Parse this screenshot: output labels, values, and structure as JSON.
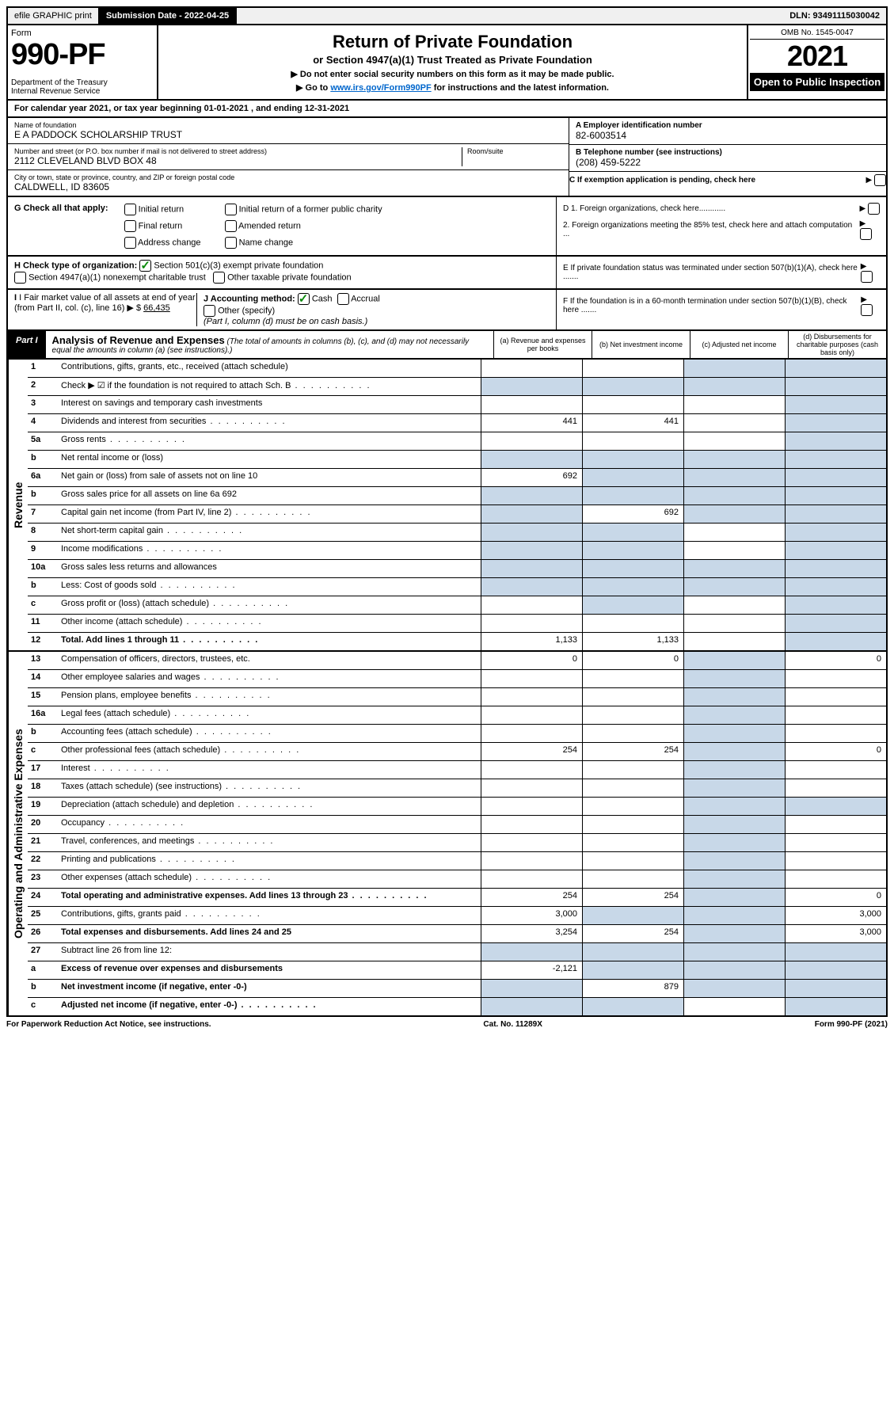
{
  "top": {
    "efile": "efile GRAPHIC print",
    "sub_label": "Submission Date - 2022-04-25",
    "dln": "DLN: 93491115030042"
  },
  "header": {
    "form": "Form",
    "form_num": "990-PF",
    "dept": "Department of the Treasury\nInternal Revenue Service",
    "title": "Return of Private Foundation",
    "subtitle": "or Section 4947(a)(1) Trust Treated as Private Foundation",
    "note1": "▶ Do not enter social security numbers on this form as it may be made public.",
    "note2_pre": "▶ Go to ",
    "note2_link": "www.irs.gov/Form990PF",
    "note2_post": " for instructions and the latest information.",
    "omb": "OMB No. 1545-0047",
    "year": "2021",
    "open": "Open to Public Inspection"
  },
  "cal": "For calendar year 2021, or tax year beginning 01-01-2021            , and ending 12-31-2021",
  "info": {
    "name_lbl": "Name of foundation",
    "name": "E A PADDOCK SCHOLARSHIP TRUST",
    "addr_lbl": "Number and street (or P.O. box number if mail is not delivered to street address)",
    "addr": "2112 CLEVELAND BLVD BOX 48",
    "room_lbl": "Room/suite",
    "city_lbl": "City or town, state or province, country, and ZIP or foreign postal code",
    "city": "CALDWELL, ID  83605",
    "ein_lbl": "A Employer identification number",
    "ein": "82-6003514",
    "tel_lbl": "B Telephone number (see instructions)",
    "tel": "(208) 459-5222",
    "c_lbl": "C If exemption application is pending, check here"
  },
  "g": {
    "label": "G Check all that apply:",
    "opts": [
      "Initial return",
      "Final return",
      "Address change",
      "Initial return of a former public charity",
      "Amended return",
      "Name change"
    ]
  },
  "d": {
    "d1": "D 1. Foreign organizations, check here............",
    "d2": "2. Foreign organizations meeting the 85% test, check here and attach computation ...",
    "e": "E  If private foundation status was terminated under section 507(b)(1)(A), check here .......",
    "f": "F  If the foundation is in a 60-month termination under section 507(b)(1)(B), check here ......."
  },
  "h": {
    "label": "H Check type of organization:",
    "opt1": "Section 501(c)(3) exempt private foundation",
    "opt2": "Section 4947(a)(1) nonexempt charitable trust",
    "opt3": "Other taxable private foundation"
  },
  "i": {
    "label": "I Fair market value of all assets at end of year (from Part II, col. (c), line 16)",
    "val": "66,435"
  },
  "j": {
    "label": "J Accounting method:",
    "cash": "Cash",
    "accrual": "Accrual",
    "other": "Other (specify)",
    "note": "(Part I, column (d) must be on cash basis.)"
  },
  "part1": {
    "label": "Part I",
    "title": "Analysis of Revenue and Expenses",
    "note": "(The total of amounts in columns (b), (c), and (d) may not necessarily equal the amounts in column (a) (see instructions).)",
    "cols": {
      "a": "(a)   Revenue and expenses per books",
      "b": "(b)   Net investment income",
      "c": "(c)   Adjusted net income",
      "d": "(d)   Disbursements for charitable purposes (cash basis only)"
    }
  },
  "side": {
    "rev": "Revenue",
    "exp": "Operating and Administrative Expenses"
  },
  "rows": [
    {
      "n": "1",
      "d": "Contributions, gifts, grants, etc., received (attach schedule)",
      "s": [
        false,
        false,
        true,
        true
      ]
    },
    {
      "n": "2",
      "d": "Check ▶ ☑ if the foundation is not required to attach Sch. B",
      "dots": true,
      "s": [
        true,
        true,
        true,
        true
      ]
    },
    {
      "n": "3",
      "d": "Interest on savings and temporary cash investments",
      "s": [
        false,
        false,
        false,
        true
      ]
    },
    {
      "n": "4",
      "d": "Dividends and interest from securities",
      "dots": true,
      "a": "441",
      "b": "441",
      "s": [
        false,
        false,
        false,
        true
      ]
    },
    {
      "n": "5a",
      "d": "Gross rents",
      "dots": true,
      "s": [
        false,
        false,
        false,
        true
      ]
    },
    {
      "n": "b",
      "d": "Net rental income or (loss)",
      "s": [
        true,
        true,
        true,
        true
      ]
    },
    {
      "n": "6a",
      "d": "Net gain or (loss) from sale of assets not on line 10",
      "a": "692",
      "s": [
        false,
        true,
        true,
        true
      ]
    },
    {
      "n": "b",
      "d": "Gross sales price for all assets on line 6a           692",
      "s": [
        true,
        true,
        true,
        true
      ]
    },
    {
      "n": "7",
      "d": "Capital gain net income (from Part IV, line 2)",
      "dots": true,
      "b": "692",
      "s": [
        true,
        false,
        true,
        true
      ]
    },
    {
      "n": "8",
      "d": "Net short-term capital gain",
      "dots": true,
      "s": [
        true,
        true,
        false,
        true
      ]
    },
    {
      "n": "9",
      "d": "Income modifications",
      "dots": true,
      "s": [
        true,
        true,
        false,
        true
      ]
    },
    {
      "n": "10a",
      "d": "Gross sales less returns and allowances",
      "s": [
        true,
        true,
        true,
        true
      ]
    },
    {
      "n": "b",
      "d": "Less: Cost of goods sold",
      "dots": true,
      "s": [
        true,
        true,
        true,
        true
      ]
    },
    {
      "n": "c",
      "d": "Gross profit or (loss) (attach schedule)",
      "dots": true,
      "s": [
        false,
        true,
        false,
        true
      ]
    },
    {
      "n": "11",
      "d": "Other income (attach schedule)",
      "dots": true,
      "s": [
        false,
        false,
        false,
        true
      ]
    },
    {
      "n": "12",
      "d": "Total. Add lines 1 through 11",
      "dots": true,
      "bold": true,
      "a": "1,133",
      "b": "1,133",
      "s": [
        false,
        false,
        false,
        true
      ]
    }
  ],
  "exp_rows": [
    {
      "n": "13",
      "d": "Compensation of officers, directors, trustees, etc.",
      "a": "0",
      "b": "0",
      "dd": "0",
      "s": [
        false,
        false,
        true,
        false
      ]
    },
    {
      "n": "14",
      "d": "Other employee salaries and wages",
      "dots": true,
      "s": [
        false,
        false,
        true,
        false
      ]
    },
    {
      "n": "15",
      "d": "Pension plans, employee benefits",
      "dots": true,
      "s": [
        false,
        false,
        true,
        false
      ]
    },
    {
      "n": "16a",
      "d": "Legal fees (attach schedule)",
      "dots": true,
      "s": [
        false,
        false,
        true,
        false
      ]
    },
    {
      "n": "b",
      "d": "Accounting fees (attach schedule)",
      "dots": true,
      "s": [
        false,
        false,
        true,
        false
      ]
    },
    {
      "n": "c",
      "d": "Other professional fees (attach schedule)",
      "dots": true,
      "a": "254",
      "b": "254",
      "dd": "0",
      "s": [
        false,
        false,
        true,
        false
      ]
    },
    {
      "n": "17",
      "d": "Interest",
      "dots": true,
      "s": [
        false,
        false,
        true,
        false
      ]
    },
    {
      "n": "18",
      "d": "Taxes (attach schedule) (see instructions)",
      "dots": true,
      "s": [
        false,
        false,
        true,
        false
      ]
    },
    {
      "n": "19",
      "d": "Depreciation (attach schedule) and depletion",
      "dots": true,
      "s": [
        false,
        false,
        true,
        true
      ]
    },
    {
      "n": "20",
      "d": "Occupancy",
      "dots": true,
      "s": [
        false,
        false,
        true,
        false
      ]
    },
    {
      "n": "21",
      "d": "Travel, conferences, and meetings",
      "dots": true,
      "s": [
        false,
        false,
        true,
        false
      ]
    },
    {
      "n": "22",
      "d": "Printing and publications",
      "dots": true,
      "s": [
        false,
        false,
        true,
        false
      ]
    },
    {
      "n": "23",
      "d": "Other expenses (attach schedule)",
      "dots": true,
      "s": [
        false,
        false,
        true,
        false
      ]
    },
    {
      "n": "24",
      "d": "Total operating and administrative expenses. Add lines 13 through 23",
      "dots": true,
      "bold": true,
      "a": "254",
      "b": "254",
      "dd": "0",
      "s": [
        false,
        false,
        true,
        false
      ]
    },
    {
      "n": "25",
      "d": "Contributions, gifts, grants paid",
      "dots": true,
      "a": "3,000",
      "dd": "3,000",
      "s": [
        false,
        true,
        true,
        false
      ]
    },
    {
      "n": "26",
      "d": "Total expenses and disbursements. Add lines 24 and 25",
      "bold": true,
      "a": "3,254",
      "b": "254",
      "dd": "3,000",
      "s": [
        false,
        false,
        true,
        false
      ]
    },
    {
      "n": "27",
      "d": "Subtract line 26 from line 12:",
      "s": [
        true,
        true,
        true,
        true
      ]
    },
    {
      "n": "a",
      "d": "Excess of revenue over expenses and disbursements",
      "bold": true,
      "a": "-2,121",
      "s": [
        false,
        true,
        true,
        true
      ]
    },
    {
      "n": "b",
      "d": "Net investment income (if negative, enter -0-)",
      "bold": true,
      "b": "879",
      "s": [
        true,
        false,
        true,
        true
      ]
    },
    {
      "n": "c",
      "d": "Adjusted net income (if negative, enter -0-)",
      "dots": true,
      "bold": true,
      "s": [
        true,
        true,
        false,
        true
      ]
    }
  ],
  "footer": {
    "left": "For Paperwork Reduction Act Notice, see instructions.",
    "mid": "Cat. No. 11289X",
    "right": "Form 990-PF (2021)"
  }
}
